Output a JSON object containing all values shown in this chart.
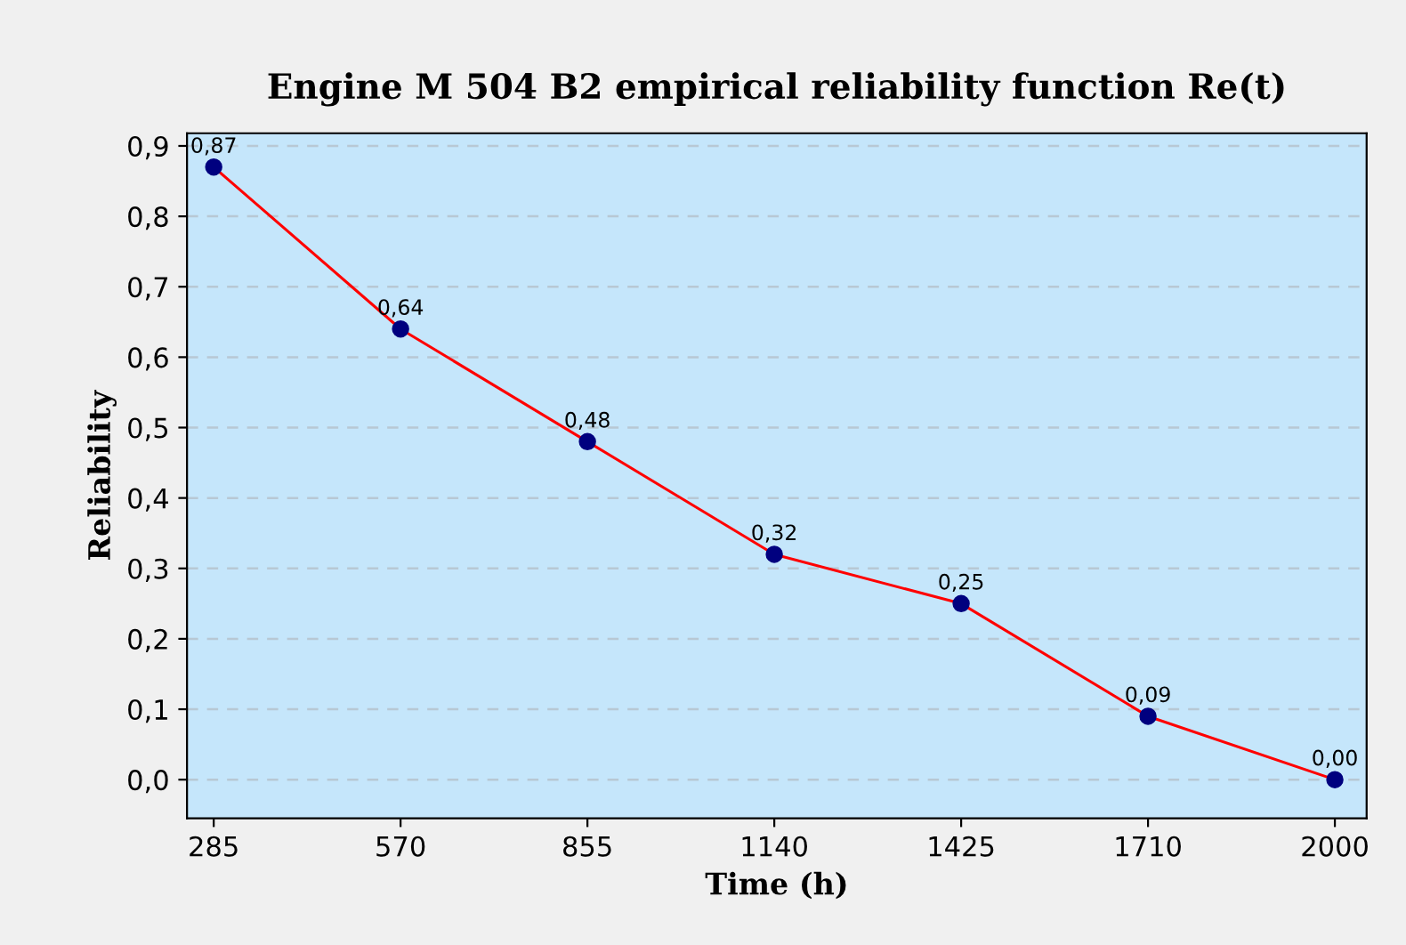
{
  "chart_data": {
    "type": "line",
    "title": "Engine M 504 B2 empirical reliability function Re(t)",
    "xlabel": "Time (h)",
    "ylabel": "Reliability",
    "categories": [
      "285",
      "570",
      "855",
      "1140",
      "1425",
      "1710",
      "2000"
    ],
    "series": [
      {
        "color": "#ff0000",
        "values": [
          0.87,
          0.64,
          0.48,
          0.32,
          0.25,
          0.09,
          0.0
        ],
        "value_labels": [
          "0,87",
          "0,64",
          "0,48",
          "0,32",
          "0,25",
          "0,09",
          "0,00"
        ]
      }
    ],
    "ylim": [
      -0.055,
      0.918
    ],
    "yticks": [
      {
        "value": 0,
        "label": "0,0"
      },
      {
        "value": 0.1,
        "label": "0,1"
      },
      {
        "value": 0.2,
        "label": "0,2"
      },
      {
        "value": 0.3,
        "label": "0,3"
      },
      {
        "value": 0.4,
        "label": "0,4"
      },
      {
        "value": 0.5,
        "label": "0,5"
      },
      {
        "value": 0.6,
        "label": "0,6"
      },
      {
        "value": 0.7,
        "label": "0,7"
      },
      {
        "value": 0.8,
        "label": "0,8"
      },
      {
        "value": 0.9,
        "label": "0,9"
      }
    ],
    "grid": "y",
    "marker": "circle",
    "line_style": "solid"
  }
}
